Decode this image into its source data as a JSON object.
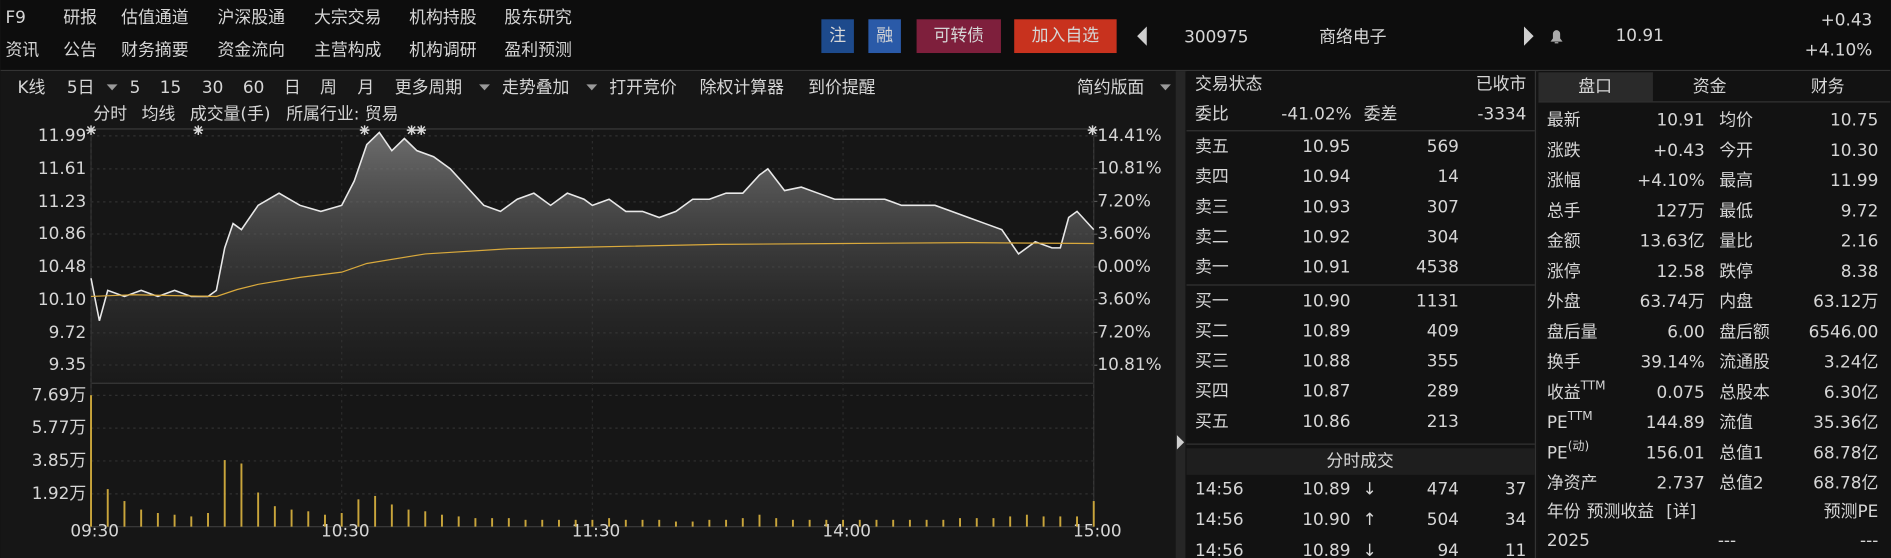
{
  "menu": {
    "row1": [
      "F9",
      "研报",
      "估值通道",
      "沪深股通",
      "大宗交易",
      "机构持股",
      "股东研究"
    ],
    "row2": [
      "资讯",
      "公告",
      "财务摘要",
      "资金流向",
      "主营构成",
      "机构调研",
      "盈利预测"
    ]
  },
  "header": {
    "badges": [
      {
        "text": "注",
        "color": "#1d4a8c"
      },
      {
        "text": "融",
        "color": "#2a5aa8"
      },
      {
        "text": "可转债",
        "color": "#7e1f3c"
      },
      {
        "text": "加入自选",
        "color": "#c8321e"
      }
    ],
    "code": "300975",
    "name": "商络电子",
    "price": "10.91",
    "change": "+0.43",
    "change_pct": "+4.10%"
  },
  "toolbar": [
    "K线",
    "5日",
    "5",
    "15",
    "30",
    "60",
    "日",
    "周",
    "月",
    "更多周期",
    "走势叠加",
    "打开竞价",
    "除权计算器",
    "到价提醒",
    "简约版面"
  ],
  "industry": "所属行业: 贸易",
  "chart_data": {
    "type": "line",
    "xlim": [
      0,
      240
    ],
    "xticks": [
      {
        "value": 0,
        "label": "09:30"
      },
      {
        "value": 60,
        "label": "10:30"
      },
      {
        "value": 120,
        "label": "11:30"
      },
      {
        "value": 180,
        "label": "14:00"
      },
      {
        "value": 240,
        "label": "15:00"
      }
    ],
    "ylim": [
      9.14,
      12.07
    ],
    "yticks": [
      11.99,
      11.61,
      11.23,
      10.86,
      10.48,
      {
        "value": 10.1,
        "label": "10.10"
      },
      9.72,
      9.35
    ],
    "y2lim": [
      -12.79,
      15.17
    ],
    "y2ticks": [
      {
        "value": 14.41,
        "label": "14.41%"
      },
      {
        "value": 10.81,
        "label": "10.81%"
      },
      {
        "value": 7.2,
        "label": "7.20%"
      },
      {
        "value": 3.6,
        "label": "3.60%"
      },
      {
        "value": 0,
        "label": "0.00%"
      },
      {
        "value": -3.6,
        "label": "3.60%"
      },
      {
        "value": -7.2,
        "label": "7.20%"
      },
      {
        "value": -10.81,
        "label": "10.81%"
      }
    ],
    "vlim": [
      0,
      8.4
    ],
    "vticks": [
      {
        "value": 7.69,
        "label": "7.69万"
      },
      {
        "value": 5.77,
        "label": "5.77万"
      },
      {
        "value": 3.85,
        "label": "3.85万"
      },
      {
        "value": 1.92,
        "label": "1.92万"
      }
    ],
    "grid": true,
    "series": [
      {
        "name": "分时",
        "color": "#e8e8e8",
        "x": [
          0,
          2,
          4,
          8,
          12,
          16,
          20,
          24,
          28,
          30,
          32,
          34,
          36,
          40,
          45,
          50,
          55,
          60,
          63,
          66,
          69,
          72,
          75,
          78,
          82,
          86,
          90,
          94,
          98,
          102,
          106,
          110,
          114,
          118,
          120,
          124,
          128,
          132,
          136,
          140,
          144,
          148,
          152,
          156,
          160,
          162,
          166,
          170,
          174,
          178,
          182,
          186,
          190,
          194,
          198,
          202,
          206,
          210,
          214,
          218,
          222,
          226,
          230,
          232,
          234,
          236,
          240
        ],
        "values": [
          10.35,
          9.86,
          10.21,
          10.14,
          10.21,
          10.14,
          10.21,
          10.14,
          10.14,
          10.21,
          10.7,
          10.98,
          10.91,
          11.19,
          11.33,
          11.19,
          11.12,
          11.19,
          11.47,
          11.89,
          12.03,
          11.82,
          11.96,
          11.82,
          11.75,
          11.61,
          11.4,
          11.19,
          11.12,
          11.26,
          11.33,
          11.19,
          11.33,
          11.26,
          11.19,
          11.26,
          11.12,
          11.12,
          11.05,
          11.12,
          11.26,
          11.26,
          11.33,
          11.33,
          11.54,
          11.61,
          11.36,
          11.4,
          11.33,
          11.26,
          11.26,
          11.26,
          11.26,
          11.19,
          11.19,
          11.19,
          11.12,
          11.05,
          10.98,
          10.91,
          10.63,
          10.77,
          10.7,
          10.7,
          11.05,
          11.12,
          10.91
        ]
      },
      {
        "name": "均线",
        "color": "#d9a93c",
        "x": [
          0,
          10,
          20,
          30,
          35,
          40,
          50,
          60,
          66,
          80,
          100,
          120,
          150,
          180,
          210,
          240
        ],
        "values": [
          10.14,
          10.16,
          10.15,
          10.14,
          10.22,
          10.28,
          10.36,
          10.42,
          10.52,
          10.63,
          10.69,
          10.71,
          10.74,
          10.75,
          10.76,
          10.75
        ]
      },
      {
        "name": "成交量(手)",
        "color": "#c9a53b",
        "axis": "volume",
        "x": [
          0,
          4,
          8,
          12,
          16,
          20,
          24,
          28,
          32,
          36,
          40,
          44,
          48,
          52,
          56,
          60,
          64,
          68,
          72,
          76,
          80,
          84,
          88,
          92,
          96,
          100,
          104,
          108,
          112,
          116,
          120,
          124,
          128,
          132,
          136,
          140,
          144,
          148,
          152,
          156,
          160,
          164,
          168,
          172,
          176,
          180,
          184,
          188,
          192,
          196,
          200,
          204,
          208,
          212,
          216,
          220,
          224,
          228,
          232,
          236,
          240
        ],
        "values": [
          7.7,
          2.2,
          1.5,
          1.0,
          0.8,
          0.7,
          0.6,
          0.8,
          3.9,
          3.7,
          2.0,
          1.2,
          1.0,
          0.9,
          0.7,
          0.8,
          1.6,
          1.8,
          1.3,
          1.0,
          0.9,
          0.7,
          0.6,
          0.5,
          0.5,
          0.5,
          0.4,
          0.4,
          0.4,
          0.4,
          0.4,
          0.5,
          0.4,
          0.4,
          0.4,
          0.3,
          0.3,
          0.4,
          0.4,
          0.5,
          0.7,
          0.5,
          0.4,
          0.4,
          0.4,
          0.4,
          0.4,
          0.4,
          0.4,
          0.4,
          0.4,
          0.4,
          0.5,
          0.5,
          0.5,
          0.6,
          0.7,
          0.6,
          0.6,
          0.6,
          1.5
        ]
      }
    ]
  },
  "order_book": {
    "status_label": "交易状态",
    "status": "已收市",
    "ratio_label": "委比",
    "ratio": "-41.02%",
    "diff_label": "委差",
    "diff": "-3334",
    "asks": [
      [
        "卖五",
        "10.95",
        "569"
      ],
      [
        "卖四",
        "10.94",
        "14"
      ],
      [
        "卖三",
        "10.93",
        "307"
      ],
      [
        "卖二",
        "10.92",
        "304"
      ],
      [
        "卖一",
        "10.91",
        "4538"
      ]
    ],
    "bids": [
      [
        "买一",
        "10.90",
        "1131"
      ],
      [
        "买二",
        "10.89",
        "409"
      ],
      [
        "买三",
        "10.88",
        "355"
      ],
      [
        "买四",
        "10.87",
        "289"
      ],
      [
        "买五",
        "10.86",
        "213"
      ]
    ]
  },
  "trades": {
    "title": "分时成交",
    "rows": [
      {
        "time": "14:56",
        "price": "10.89",
        "dir": "↓",
        "volume": "474",
        "count": "37",
        "color": "down"
      },
      {
        "time": "14:56",
        "price": "10.90",
        "dir": "↑",
        "volume": "504",
        "count": "34",
        "color": "up"
      },
      {
        "time": "14:56",
        "price": "10.89",
        "dir": "↓",
        "volume": "94",
        "count": "11",
        "color": "down"
      }
    ]
  },
  "quote": {
    "tabs": [
      "盘口",
      "资金",
      "财务"
    ],
    "rows": [
      [
        {
          "label": "最新",
          "value": "10.91",
          "color": "up"
        },
        {
          "label": "均价",
          "value": "10.75",
          "color": "up"
        }
      ],
      [
        {
          "label": "涨跌",
          "value": "+0.43",
          "color": "up"
        },
        {
          "label": "今开",
          "value": "10.30",
          "color": "down"
        }
      ],
      [
        {
          "label": "涨幅",
          "value": "+4.10%",
          "color": "up"
        },
        {
          "label": "最高",
          "value": "11.99",
          "color": "up"
        }
      ],
      [
        {
          "label": "总手",
          "value": "127万",
          "color": "flat"
        },
        {
          "label": "最低",
          "value": "9.72",
          "color": "down"
        }
      ],
      [
        {
          "label": "金额",
          "value": "13.63亿",
          "color": "amount"
        },
        {
          "label": "量比",
          "value": "2.16",
          "color": "flat"
        }
      ],
      [
        {
          "label": "涨停",
          "value": "12.58",
          "color": "up"
        },
        {
          "label": "跌停",
          "value": "8.38",
          "color": "down"
        }
      ],
      [
        {
          "label": "外盘",
          "value": "63.74万",
          "color": "up"
        },
        {
          "label": "内盘",
          "value": "63.12万",
          "color": "down"
        }
      ],
      [
        {
          "label": "盘后量",
          "value": "6.00",
          "color": "flat"
        },
        {
          "label": "盘后额",
          "value": "6546.00",
          "color": "amount"
        }
      ],
      [
        {
          "label": "换手",
          "value": "39.14%",
          "color": "flat"
        },
        {
          "label": "流通股",
          "value": "3.24亿",
          "color": "flat"
        }
      ],
      [
        {
          "label": "收益",
          "sup": "TTM",
          "value": "0.075",
          "color": "flat"
        },
        {
          "label": "总股本",
          "value": "6.30亿",
          "color": "flat"
        }
      ],
      [
        {
          "label": "PE",
          "sup": "TTM",
          "value": "144.89",
          "color": "flat"
        },
        {
          "label": "流值",
          "value": "35.36亿",
          "color": "flat"
        }
      ],
      [
        {
          "label": "PE",
          "sup": "(动)",
          "value": "156.01",
          "color": "flat"
        },
        {
          "label": "总值1",
          "value": "68.78亿",
          "color": "flat"
        }
      ],
      [
        {
          "label": "净资产",
          "value": "2.737",
          "color": "flat"
        },
        {
          "label": "总值2",
          "value": "68.78亿",
          "color": "flat"
        }
      ]
    ],
    "forecast_header": [
      "年份",
      "预测收益",
      "[详]",
      "预测PE"
    ],
    "forecast_row": [
      "2025",
      "---",
      "---"
    ]
  }
}
